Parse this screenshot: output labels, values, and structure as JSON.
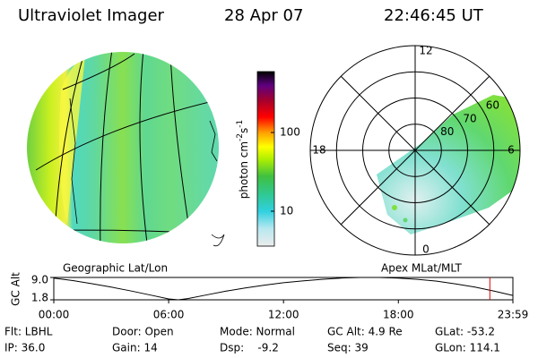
{
  "header": {
    "title": "Ultraviolet Imager",
    "date": "28 Apr 07",
    "time": "22:46:45 UT"
  },
  "image_labels": {
    "left": "Geographic Lat/Lon",
    "right": "Apex MLat/MLT"
  },
  "colorbar": {
    "label": [
      "photon cm",
      "-2",
      "s",
      "-1"
    ],
    "scale": "log",
    "lim": [
      3.6,
      594
    ],
    "ticks": [
      10,
      100
    ]
  },
  "polar": {
    "lat_lim": [
      50,
      90
    ],
    "rings": [
      80,
      70,
      60
    ],
    "mlt": [
      12,
      18,
      6,
      0
    ]
  },
  "timeline": {
    "ylabel": "GC Alt",
    "xlim": [
      0,
      23.983
    ],
    "xticks": [
      {
        "value": 0,
        "label": "00:00"
      },
      {
        "value": 6,
        "label": "06:00"
      },
      {
        "value": 12,
        "label": "12:00"
      },
      {
        "value": 18,
        "label": "18:00"
      },
      {
        "value": 23.983,
        "label": "23:59"
      }
    ],
    "ylim": [
      1.8,
      9.0
    ],
    "yticks": [
      {
        "value": 9,
        "label": "9.0"
      },
      1.8
    ],
    "x": [
      0,
      1,
      2,
      3,
      4,
      5,
      6,
      6.5,
      7,
      8,
      9,
      10,
      11,
      12,
      13,
      14,
      15,
      16,
      17,
      18,
      19,
      20,
      21,
      22,
      23,
      23.983
    ],
    "values": [
      8.8,
      8.0,
      7.0,
      5.9,
      4.7,
      3.4,
      2.1,
      1.8,
      2.2,
      3.4,
      4.6,
      5.6,
      6.5,
      7.3,
      7.9,
      8.4,
      8.8,
      9.0,
      9.0,
      8.8,
      8.4,
      7.8,
      6.9,
      5.9,
      4.6,
      3.2
    ],
    "marker": 22.779,
    "marker_color": "#e00000"
  },
  "footer": {
    "rows": [
      [
        "Flt: LBHL",
        "Door: Open",
        "Mode: Normal",
        "GC Alt: 4.9 Re",
        "GLat: -53.2"
      ],
      [
        "IP: 36.0",
        "Gain: 14",
        "Dsp:    -9.2",
        "Seq: 39",
        "GLon: 114.1"
      ]
    ]
  }
}
